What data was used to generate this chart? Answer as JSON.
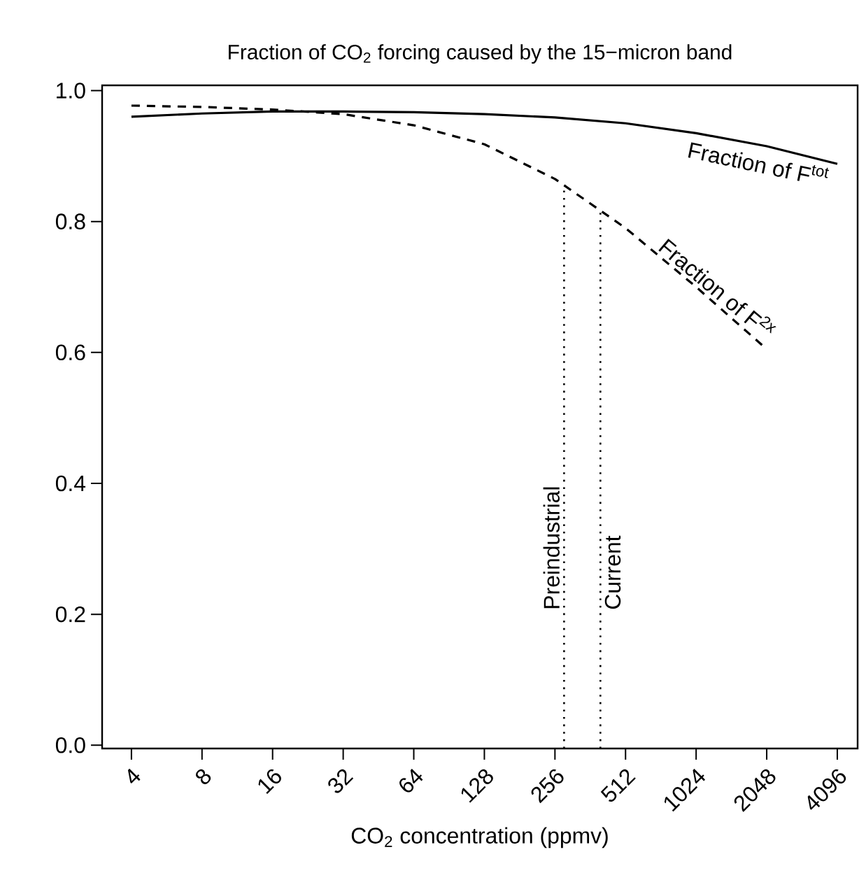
{
  "chart_data": {
    "type": "line",
    "title": "Fraction of CO$_{2}$ forcing caused by the 15−micron band",
    "xlabel": "CO$_{2}$ concentration (ppmv)",
    "log": "x",
    "grid": false,
    "marker": "none",
    "xlim": [
      3,
      5000
    ],
    "ylim": [
      -0.005,
      1.008
    ],
    "xticks": [
      4,
      8,
      16,
      32,
      64,
      128,
      256,
      512,
      1024,
      2048,
      4096
    ],
    "yticks": [
      {
        "value": 0,
        "label": "0.0"
      },
      0.2,
      0.4,
      0.6,
      0.8,
      {
        "value": 1,
        "label": "1.0"
      }
    ],
    "series": [
      {
        "color": "#000000",
        "line_style": "solid",
        "x": [
          4,
          8,
          16,
          32,
          64,
          128,
          256,
          512,
          1024,
          2048,
          4096
        ],
        "values": [
          0.96,
          0.965,
          0.968,
          0.968,
          0.967,
          0.964,
          0.959,
          0.95,
          0.935,
          0.915,
          0.888
        ]
      },
      {
        "color": "#000000",
        "line_style": "dashed",
        "x": [
          4,
          8,
          16,
          32,
          64,
          128,
          256,
          512,
          1024,
          2048
        ],
        "values": [
          0.977,
          0.975,
          0.971,
          0.964,
          0.947,
          0.918,
          0.865,
          0.79,
          0.7,
          0.605
        ]
      }
    ],
    "ref_lines": [
      {
        "axis": "x",
        "value": 280,
        "label": "Preindustrial",
        "line_style": "dotted",
        "color": "#000000"
      },
      {
        "axis": "x",
        "value": 400,
        "label": "Current",
        "line_style": "dotted",
        "color": "#000000"
      }
    ],
    "annotations": [
      "Fraction of F$^{tot}$",
      "Fraction of F$^{2x}$"
    ]
  }
}
